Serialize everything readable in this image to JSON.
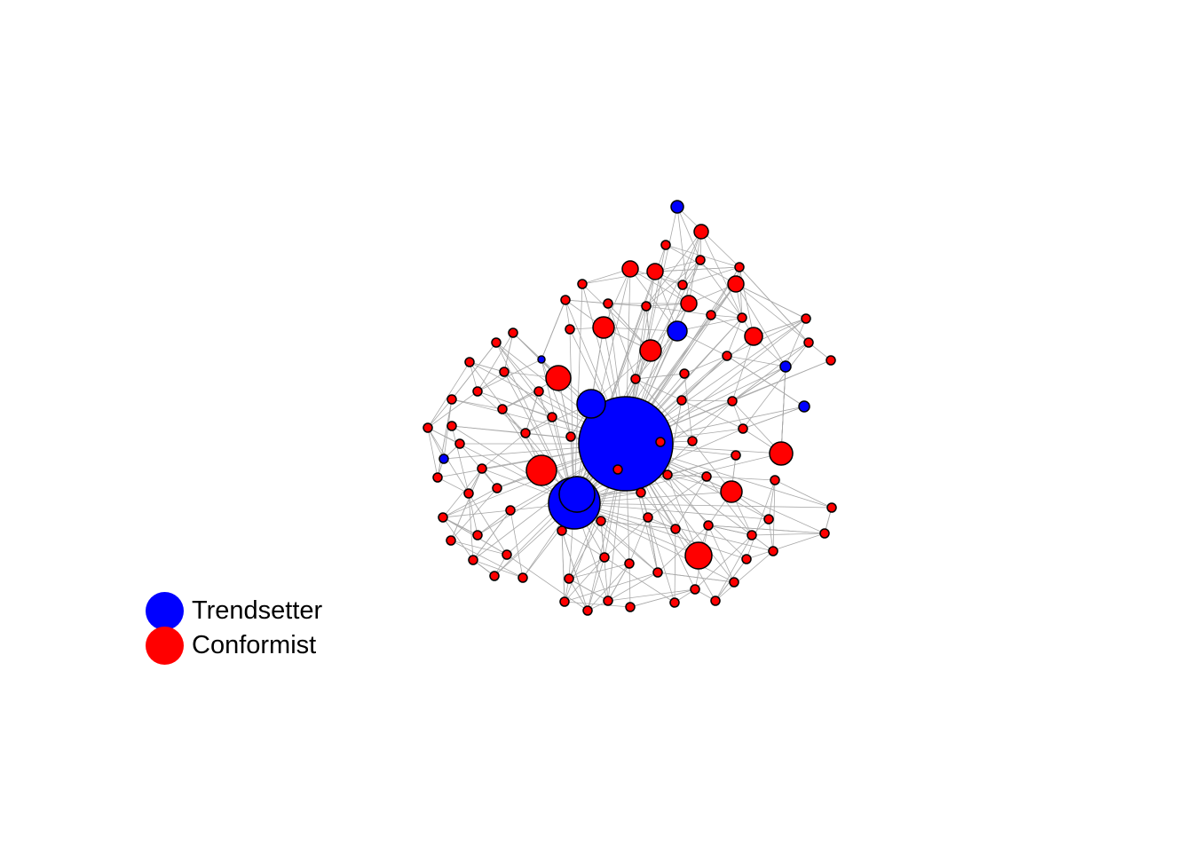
{
  "legend": {
    "items": [
      {
        "label": "Trendsetter",
        "color": "#0000FF"
      },
      {
        "label": "Conformist",
        "color": "#FF0000"
      }
    ]
  },
  "colors": {
    "edge": "#A9A9A9",
    "node_border": "#000000"
  }
}
